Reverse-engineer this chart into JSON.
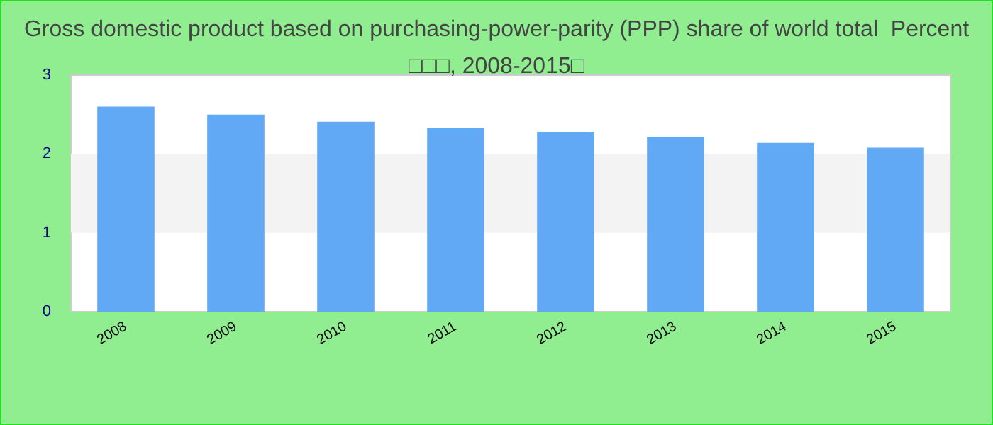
{
  "chart_data": {
    "type": "bar",
    "title": "Gross domestic product based on purchasing-power-parity (PPP) share of world total  Percent\n□□□, 2008-2015□",
    "categories": [
      "2008",
      "2009",
      "2010",
      "2011",
      "2012",
      "2013",
      "2014",
      "2015"
    ],
    "values": [
      2.6,
      2.5,
      2.41,
      2.33,
      2.28,
      2.21,
      2.14,
      2.08
    ],
    "color": "#61a8f5",
    "ylim": [
      0,
      3
    ],
    "yticks": [
      0,
      1,
      2,
      3
    ],
    "bands": [
      {
        "axis": "y",
        "from": 1,
        "to": 2,
        "color": "#f3f3f3"
      }
    ]
  }
}
